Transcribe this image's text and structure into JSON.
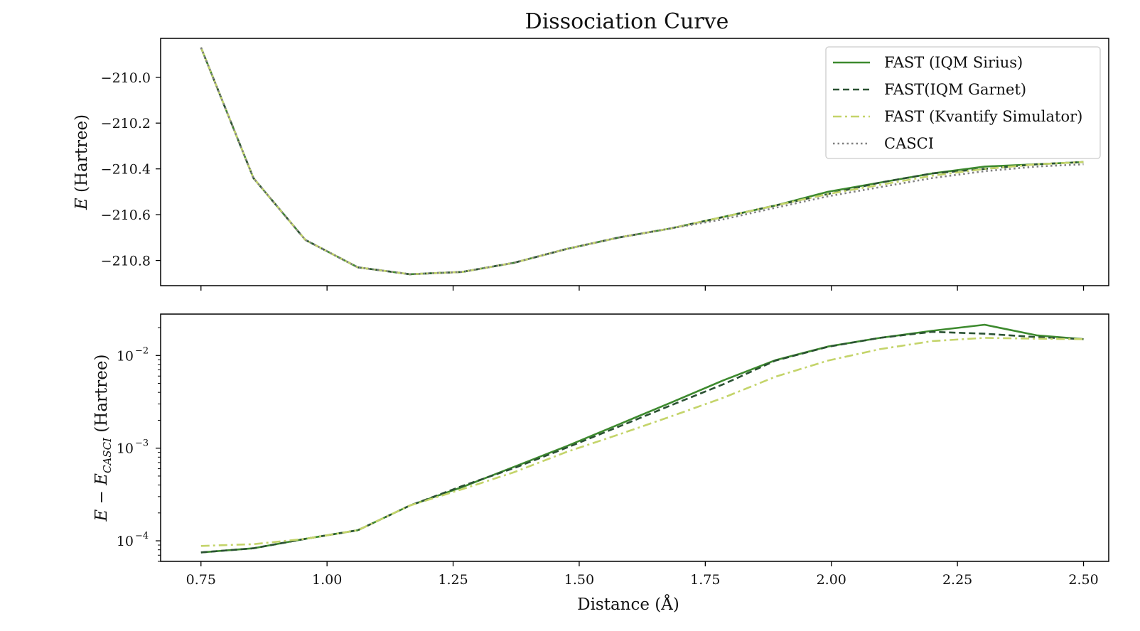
{
  "chart_data": {
    "title": "Dissociation Curve",
    "xlabel": "Distance (Å)",
    "xlim": [
      0.67,
      2.55
    ],
    "x_ticks": [
      0.75,
      1.0,
      1.25,
      1.5,
      1.75,
      2.0,
      2.25,
      2.5
    ],
    "x_tick_labels": [
      "0.75",
      "1.00",
      "1.25",
      "1.50",
      "1.75",
      "2.00",
      "2.25",
      "2.50"
    ],
    "charts": [
      {
        "type": "line",
        "ylabel": "E (Hartree)",
        "ylabel_math": "E",
        "ylabel_text": "(Hartree)",
        "ylim": [
          -210.91,
          -209.83
        ],
        "y_ticks": [
          -210.0,
          -210.2,
          -210.4,
          -210.6,
          -210.8
        ],
        "y_tick_labels": [
          "−210.0",
          "−210.2",
          "−210.4",
          "−210.6",
          "−210.8"
        ],
        "legend": "top-right",
        "x": [
          0.75,
          0.854,
          0.957,
          1.061,
          1.164,
          1.268,
          1.371,
          1.475,
          1.578,
          1.682,
          1.786,
          1.889,
          1.993,
          2.096,
          2.2,
          2.304,
          2.407,
          2.5
        ],
        "series": [
          {
            "name": "FAST (IQM Sirius)",
            "style": "solid",
            "color": "#3d8a2e",
            "values": [
              -209.87,
              -210.44,
              -210.71,
              -210.83,
              -210.86,
              -210.85,
              -210.81,
              -210.75,
              -210.7,
              -210.66,
              -210.61,
              -210.56,
              -210.5,
              -210.46,
              -210.42,
              -210.39,
              -210.38,
              -210.37
            ]
          },
          {
            "name": "FAST(IQM Garnet)",
            "style": "dashed",
            "color": "#2b5233",
            "values": [
              -209.87,
              -210.44,
              -210.71,
              -210.83,
              -210.86,
              -210.85,
              -210.81,
              -210.75,
              -210.7,
              -210.66,
              -210.61,
              -210.56,
              -210.51,
              -210.46,
              -210.42,
              -210.4,
              -210.38,
              -210.37
            ]
          },
          {
            "name": "FAST (Kvantify Simulator)",
            "style": "dashdot",
            "color": "#c4d46a",
            "values": [
              -209.87,
              -210.44,
              -210.71,
              -210.83,
              -210.86,
              -210.85,
              -210.81,
              -210.75,
              -210.7,
              -210.66,
              -210.61,
              -210.56,
              -210.51,
              -210.47,
              -210.43,
              -210.4,
              -210.38,
              -210.37
            ]
          },
          {
            "name": "CASCI",
            "style": "dotted",
            "color": "#808080",
            "values": [
              -209.87,
              -210.44,
              -210.71,
              -210.83,
              -210.86,
              -210.85,
              -210.81,
              -210.75,
              -210.7,
              -210.66,
              -210.62,
              -210.57,
              -210.52,
              -210.48,
              -210.44,
              -210.41,
              -210.39,
              -210.38
            ]
          }
        ]
      },
      {
        "type": "line",
        "yscale": "log",
        "ylabel": "E − E_CASCI (Hartree)",
        "ylabel_math": "E − E",
        "ylabel_sub": "CASCI",
        "ylabel_text": "(Hartree)",
        "ylim": [
          6e-05,
          0.028
        ],
        "y_ticks": [
          0.0001,
          0.001,
          0.01
        ],
        "y_tick_base": "10",
        "y_tick_exps": [
          "−4",
          "−3",
          "−2"
        ],
        "x": [
          0.75,
          0.854,
          0.957,
          1.061,
          1.164,
          1.268,
          1.371,
          1.475,
          1.578,
          1.682,
          1.786,
          1.889,
          1.993,
          2.096,
          2.2,
          2.304,
          2.407,
          2.5
        ],
        "series": [
          {
            "name": "FAST (IQM Sirius)",
            "style": "solid",
            "color": "#3d8a2e",
            "values": [
              7.5e-05,
              8.3e-05,
              0.000105,
              0.00013,
              0.00024,
              0.00038,
              0.00063,
              0.00105,
              0.0018,
              0.0031,
              0.0054,
              0.0089,
              0.0125,
              0.0155,
              0.0185,
              0.0215,
              0.0165,
              0.015
            ]
          },
          {
            "name": "FAST(IQM Garnet)",
            "style": "dashed",
            "color": "#2b5233",
            "values": [
              7.5e-05,
              8.3e-05,
              0.000105,
              0.00013,
              0.00024,
              0.00039,
              0.00061,
              0.00101,
              0.0017,
              0.0029,
              0.0049,
              0.0088,
              0.0124,
              0.0155,
              0.018,
              0.0172,
              0.0158,
              0.015
            ]
          },
          {
            "name": "FAST (Kvantify Simulator)",
            "style": "dashdot",
            "color": "#c4d46a",
            "values": [
              8.8e-05,
              9.2e-05,
              0.000105,
              0.00013,
              0.00024,
              0.00036,
              0.00055,
              0.00091,
              0.0014,
              0.0022,
              0.0035,
              0.0059,
              0.0088,
              0.0117,
              0.0143,
              0.0155,
              0.0152,
              0.015
            ]
          }
        ]
      }
    ]
  }
}
